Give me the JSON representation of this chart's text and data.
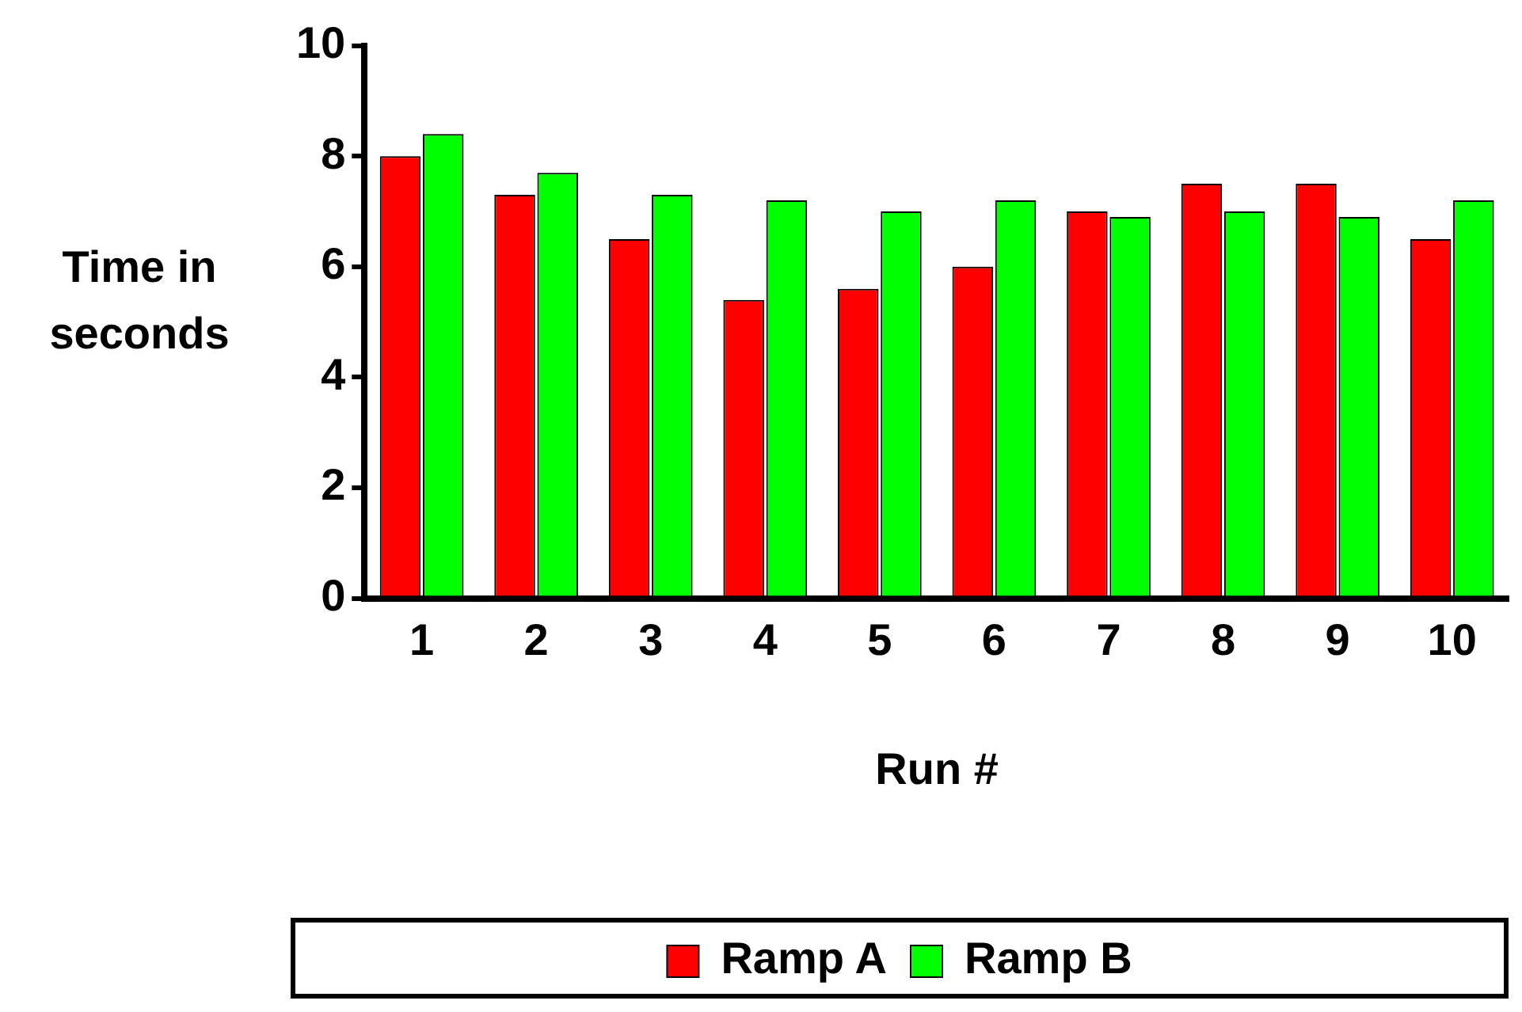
{
  "chart_data": {
    "type": "bar",
    "xlabel": "Run #",
    "ylabel": "Time in seconds",
    "categories": [
      "1",
      "2",
      "3",
      "4",
      "5",
      "6",
      "7",
      "8",
      "9",
      "10"
    ],
    "series": [
      {
        "name": "Ramp A",
        "color": "#ff0000",
        "values": [
          8.0,
          7.3,
          6.5,
          5.4,
          5.6,
          6.0,
          7.0,
          7.5,
          7.5,
          6.5
        ]
      },
      {
        "name": "Ramp B",
        "color": "#00ff00",
        "values": [
          8.4,
          7.7,
          7.3,
          7.2,
          7.0,
          7.2,
          6.9,
          7.0,
          6.9,
          7.2
        ]
      }
    ],
    "ylim": [
      0,
      10
    ],
    "yticks": [
      0,
      2,
      4,
      6,
      8,
      10
    ],
    "grid": false,
    "legend": "bottom"
  }
}
